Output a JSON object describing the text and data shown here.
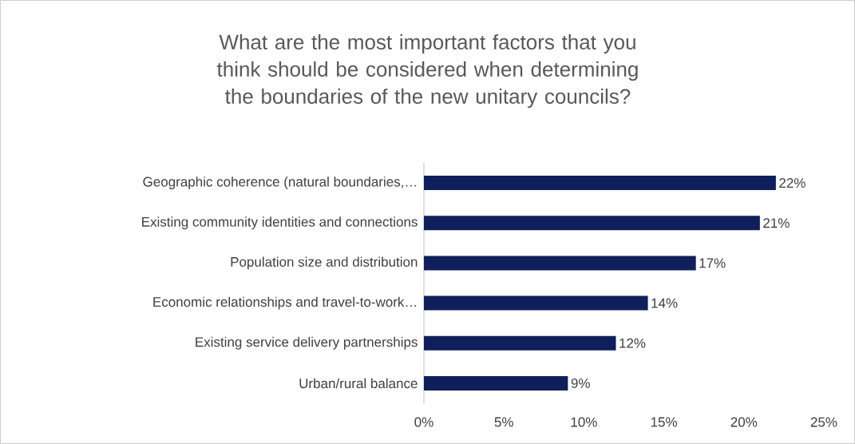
{
  "chart_data": {
    "type": "bar",
    "orientation": "horizontal",
    "title": "What are the most important factors that you think should be considered when determining the boundaries of the new unitary councils?",
    "categories": [
      "Geographic coherence (natural boundaries,…",
      "Existing community identities and connections",
      "Population size and distribution",
      "Economic relationships and travel-to-work…",
      "Existing service delivery partnerships",
      "Urban/rural balance"
    ],
    "values": [
      22,
      21,
      17,
      14,
      12,
      9
    ],
    "value_labels": [
      "22%",
      "21%",
      "17%",
      "14%",
      "12%",
      "9%"
    ],
    "color": "#0e1f5b",
    "xlim": [
      0,
      25
    ],
    "xticks": [
      {
        "value": 0,
        "label": "0%"
      },
      {
        "value": 5,
        "label": "5%"
      },
      {
        "value": 10,
        "label": "10%"
      },
      {
        "value": 15,
        "label": "15%"
      },
      {
        "value": 20,
        "label": "20%"
      },
      {
        "value": 25,
        "label": "25%"
      }
    ],
    "grid": false
  }
}
